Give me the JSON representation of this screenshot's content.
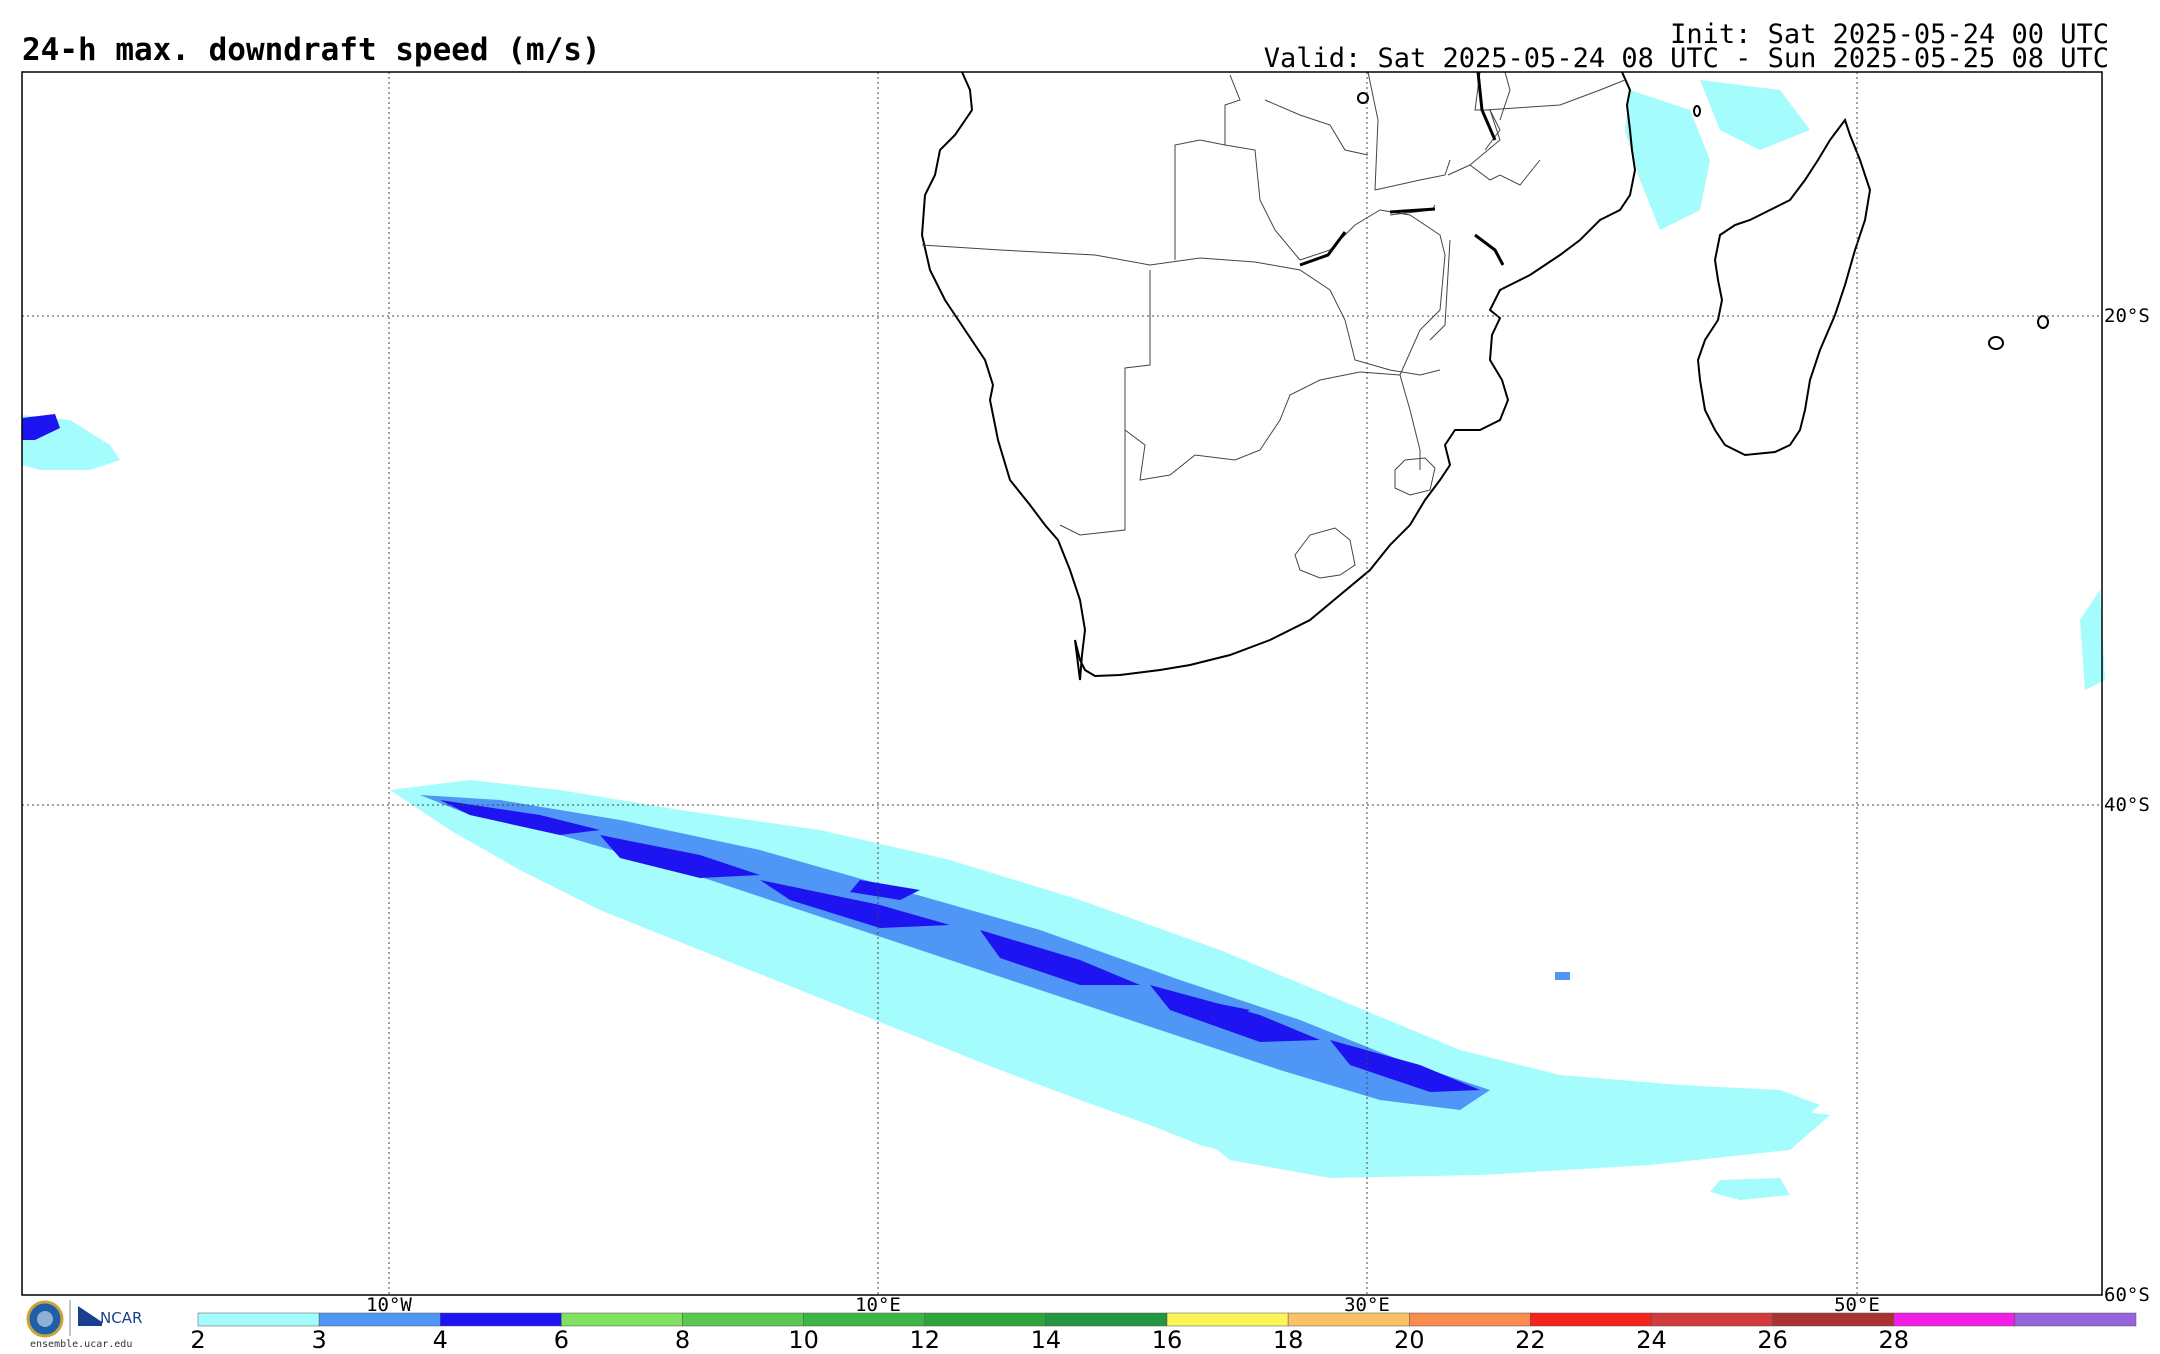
{
  "header": {
    "title": "24-h max. downdraft speed (m/s)",
    "init": "Init: Sat 2025-05-24 00 UTC",
    "valid": "Valid: Sat 2025-05-24 08 UTC - Sun 2025-05-25 08 UTC"
  },
  "map": {
    "lat_labels": [
      "20°S",
      "40°S",
      "60°S"
    ],
    "lon_labels": [
      "10°W",
      "10°E",
      "30°E",
      "50°E"
    ],
    "lon_range": [
      -25,
      60
    ],
    "lat_range": [
      -65,
      -15
    ]
  },
  "colorbar": {
    "ticks": [
      "2",
      "3",
      "4",
      "6",
      "8",
      "10",
      "12",
      "14",
      "16",
      "18",
      "20",
      "22",
      "24",
      "26",
      "28"
    ],
    "colors": [
      "#a4fcfd",
      "#5096f6",
      "#1e14f1",
      "#80e160",
      "#5ac84e",
      "#3cb446",
      "#2ea53c",
      "#239641",
      "#fcf55a",
      "#fbc164",
      "#fa8c50",
      "#f5231e",
      "#d23c3c",
      "#aa3232",
      "#f01ee6",
      "#9664dc"
    ]
  },
  "footer": {
    "url": "ensemble.ucar.edu",
    "ncar": "NCAR"
  },
  "colors": {
    "light": "#a4fcfd",
    "medium": "#5096f6",
    "dark": "#1e14f1"
  }
}
